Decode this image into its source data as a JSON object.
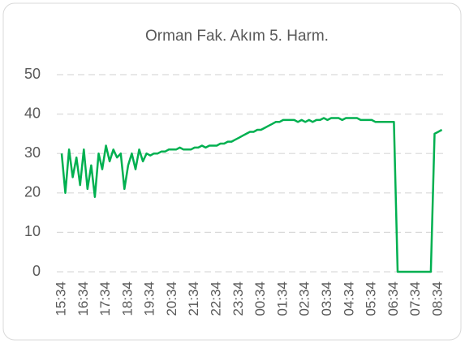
{
  "chart_data": {
    "type": "line",
    "title": "Orman Fak. Akım 5. Harm.",
    "categories": [
      "15:34",
      null,
      null,
      null,
      null,
      null,
      "16:34",
      null,
      null,
      null,
      null,
      null,
      "17:34",
      null,
      null,
      null,
      null,
      null,
      "18:34",
      null,
      null,
      null,
      null,
      null,
      "19:34",
      null,
      null,
      null,
      null,
      null,
      "20:34",
      null,
      null,
      null,
      null,
      null,
      "21:34",
      null,
      null,
      null,
      null,
      null,
      "22:34",
      null,
      null,
      null,
      null,
      null,
      "23:34",
      null,
      null,
      null,
      null,
      null,
      "00:34",
      null,
      null,
      null,
      null,
      null,
      "01:34",
      null,
      null,
      null,
      null,
      null,
      "02:34",
      null,
      null,
      null,
      null,
      null,
      "03:34",
      null,
      null,
      null,
      null,
      null,
      "04:34",
      null,
      null,
      null,
      null,
      null,
      "05:34",
      null,
      null,
      null,
      null,
      null,
      "06:34",
      null,
      null,
      null,
      null,
      null,
      "07:34",
      null,
      null,
      null,
      null,
      null,
      "08:34",
      null
    ],
    "series": [
      {
        "name": "Orman Fak. Akım 5. Harm.",
        "color": "#00b050",
        "values": [
          30,
          20,
          31,
          24,
          29,
          22,
          31,
          21,
          27,
          19,
          30,
          26,
          32,
          28,
          31,
          29,
          30,
          21,
          27,
          30,
          26,
          31,
          28,
          30,
          29.5,
          30,
          30,
          30.5,
          30.5,
          31,
          31,
          31,
          31.5,
          31,
          31,
          31,
          31.5,
          31.5,
          32,
          31.5,
          32,
          32,
          32,
          32.5,
          32.5,
          33,
          33,
          33.5,
          34,
          34.5,
          35,
          35.5,
          35.5,
          36,
          36,
          36.5,
          37,
          37.5,
          38,
          38,
          38.5,
          38.5,
          38.5,
          38.5,
          38,
          38.5,
          38,
          38.5,
          38,
          38.5,
          38.5,
          39,
          38.5,
          39,
          39,
          39,
          38.5,
          39,
          39,
          39,
          39,
          38.5,
          38.5,
          38.5,
          38.5,
          38,
          38,
          38,
          38,
          38,
          38,
          0,
          0,
          0,
          0,
          0,
          0,
          0,
          0,
          0,
          0,
          35,
          35.5,
          36
        ]
      }
    ],
    "ylim": [
      0,
      50
    ],
    "yticks": [
      0,
      10,
      20,
      30,
      40,
      50
    ],
    "grid": true
  }
}
